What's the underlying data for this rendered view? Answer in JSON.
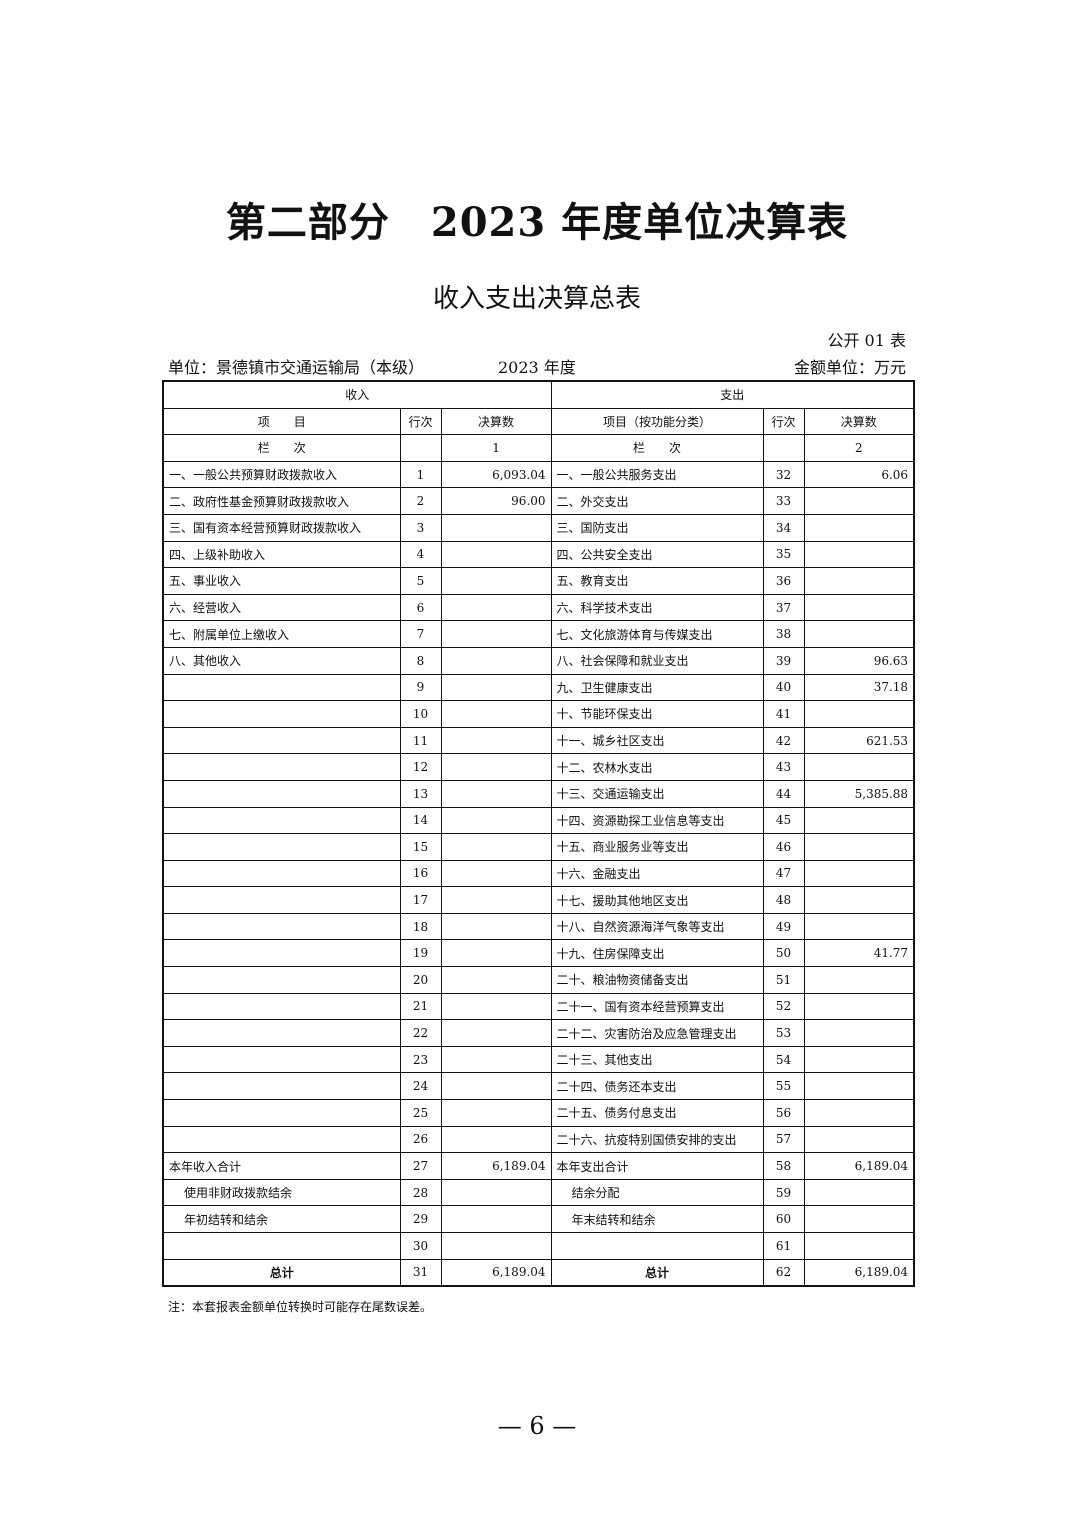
{
  "title": "第二部分　2023 年度单位决算表",
  "subtitle": "收入支出决算总表",
  "table_code": "公开 01 表",
  "unit": "单位：景德镇市交通运输局（本级）",
  "year": "2023 年度",
  "currency": "金额单位：万元",
  "headers": {
    "income": "收入",
    "expense": "支出",
    "item": "项　　目",
    "row_no": "行次",
    "amount": "决算数",
    "expense_item": "项目（按功能分类）",
    "column": "栏　　次",
    "col1": "1",
    "col2": "2"
  },
  "rows": [
    [
      "一、一般公共预算财政拨款收入",
      "1",
      "6,093.04",
      "一、一般公共服务支出",
      "32",
      "6.06"
    ],
    [
      "二、政府性基金预算财政拨款收入",
      "2",
      "96.00",
      "二、外交支出",
      "33",
      ""
    ],
    [
      "三、国有资本经营预算财政拨款收入",
      "3",
      "",
      "三、国防支出",
      "34",
      ""
    ],
    [
      "四、上级补助收入",
      "4",
      "",
      "四、公共安全支出",
      "35",
      ""
    ],
    [
      "五、事业收入",
      "5",
      "",
      "五、教育支出",
      "36",
      ""
    ],
    [
      "六、经营收入",
      "6",
      "",
      "六、科学技术支出",
      "37",
      ""
    ],
    [
      "七、附属单位上缴收入",
      "7",
      "",
      "七、文化旅游体育与传媒支出",
      "38",
      ""
    ],
    [
      "八、其他收入",
      "8",
      "",
      "八、社会保障和就业支出",
      "39",
      "96.63"
    ],
    [
      "",
      "9",
      "",
      "九、卫生健康支出",
      "40",
      "37.18"
    ],
    [
      "",
      "10",
      "",
      "十、节能环保支出",
      "41",
      ""
    ],
    [
      "",
      "11",
      "",
      "十一、城乡社区支出",
      "42",
      "621.53"
    ],
    [
      "",
      "12",
      "",
      "十二、农林水支出",
      "43",
      ""
    ],
    [
      "",
      "13",
      "",
      "十三、交通运输支出",
      "44",
      "5,385.88"
    ],
    [
      "",
      "14",
      "",
      "十四、资源勘探工业信息等支出",
      "45",
      ""
    ],
    [
      "",
      "15",
      "",
      "十五、商业服务业等支出",
      "46",
      ""
    ],
    [
      "",
      "16",
      "",
      "十六、金融支出",
      "47",
      ""
    ],
    [
      "",
      "17",
      "",
      "十七、援助其他地区支出",
      "48",
      ""
    ],
    [
      "",
      "18",
      "",
      "十八、自然资源海洋气象等支出",
      "49",
      ""
    ],
    [
      "",
      "19",
      "",
      "十九、住房保障支出",
      "50",
      "41.77"
    ],
    [
      "",
      "20",
      "",
      "二十、粮油物资储备支出",
      "51",
      ""
    ],
    [
      "",
      "21",
      "",
      "二十一、国有资本经营预算支出",
      "52",
      ""
    ],
    [
      "",
      "22",
      "",
      "二十二、灾害防治及应急管理支出",
      "53",
      ""
    ],
    [
      "",
      "23",
      "",
      "二十三、其他支出",
      "54",
      ""
    ],
    [
      "",
      "24",
      "",
      "二十四、债务还本支出",
      "55",
      ""
    ],
    [
      "",
      "25",
      "",
      "二十五、债务付息支出",
      "56",
      ""
    ],
    [
      "",
      "26",
      "",
      "二十六、抗疫特别国债安排的支出",
      "57",
      ""
    ],
    [
      "本年收入合计",
      "27",
      "6,189.04",
      "本年支出合计",
      "58",
      "6,189.04"
    ],
    [
      "使用非财政拨款结余",
      "28",
      "",
      "结余分配",
      "59",
      ""
    ],
    [
      "年初结转和结余",
      "29",
      "",
      "年末结转和结余",
      "60",
      ""
    ],
    [
      "",
      "30",
      "",
      "",
      "61",
      ""
    ],
    [
      "总计",
      "31",
      "6,189.04",
      "总计",
      "62",
      "6,189.04"
    ]
  ],
  "note": "注：本套报表金额单位转换时可能存在尾数误差。",
  "page_number": "— 6 —"
}
